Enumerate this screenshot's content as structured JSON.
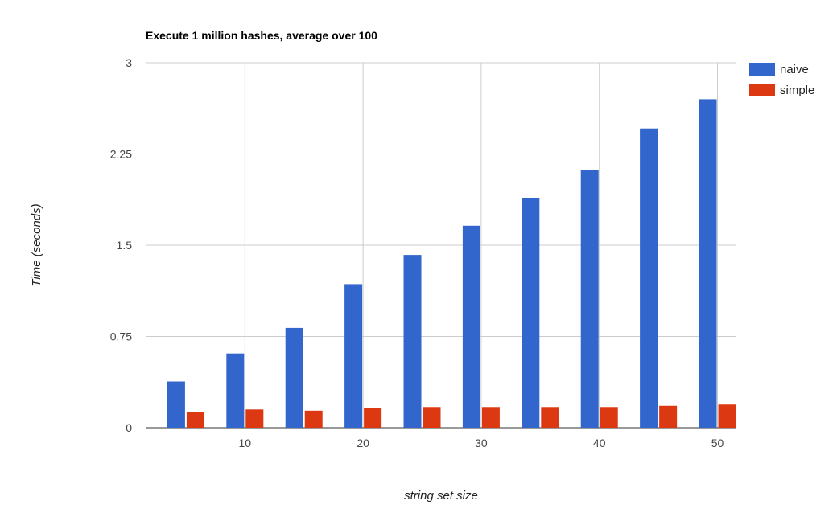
{
  "chart_data": {
    "type": "bar",
    "title": "Execute 1 million hashes, average over 100",
    "xlabel": "string set size",
    "ylabel": "Time (seconds)",
    "x": [
      5,
      10,
      15,
      20,
      25,
      30,
      35,
      40,
      45,
      50
    ],
    "xticks": [
      10,
      20,
      30,
      40,
      50
    ],
    "yticks": [
      0,
      0.75,
      1.5,
      2.25,
      3
    ],
    "ytick_labels": [
      "0",
      "0.75",
      "1.5",
      "2.25",
      "3"
    ],
    "xlim": [
      1.6,
      51.6
    ],
    "ylim": [
      0,
      3
    ],
    "grid": true,
    "legend_position": "right",
    "series": [
      {
        "name": "naive",
        "color": "#3366cc",
        "values": [
          0.38,
          0.61,
          0.82,
          1.18,
          1.42,
          1.66,
          1.89,
          2.12,
          2.46,
          2.7
        ]
      },
      {
        "name": "simple",
        "color": "#dc3912",
        "values": [
          0.13,
          0.15,
          0.14,
          0.16,
          0.17,
          0.17,
          0.17,
          0.17,
          0.18,
          0.19
        ]
      }
    ]
  }
}
